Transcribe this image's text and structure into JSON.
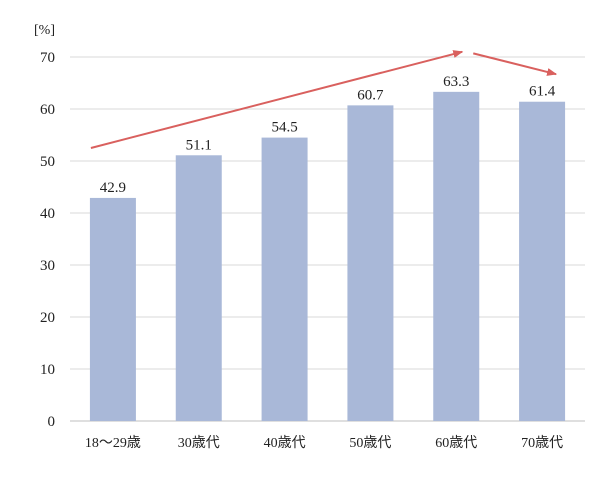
{
  "chart_data": {
    "type": "bar",
    "ylabel": "[%]",
    "ylim": [
      0,
      70
    ],
    "yticks": [
      0,
      10,
      20,
      30,
      40,
      50,
      60,
      70
    ],
    "grid": true,
    "categories": [
      "18〜29歳",
      "30歳代",
      "40歳代",
      "50歳代",
      "60歳代",
      "70歳代"
    ],
    "values": [
      42.9,
      51.1,
      54.5,
      60.7,
      63.3,
      61.4
    ],
    "value_labels": [
      "42.9",
      "51.1",
      "54.5",
      "60.7",
      "63.3",
      "61.4"
    ],
    "annotations": [
      {
        "type": "arrow",
        "from_category": "18〜29歳",
        "to_category": "60歳代",
        "direction": "up"
      },
      {
        "type": "arrow",
        "from_category": "60歳代",
        "to_category": "70歳代",
        "direction": "down"
      }
    ]
  },
  "colors": {
    "bar": "#a9b8d8",
    "arrow": "#d9605e",
    "grid": "#d9d9d9",
    "axis": "#bfbfbf"
  }
}
